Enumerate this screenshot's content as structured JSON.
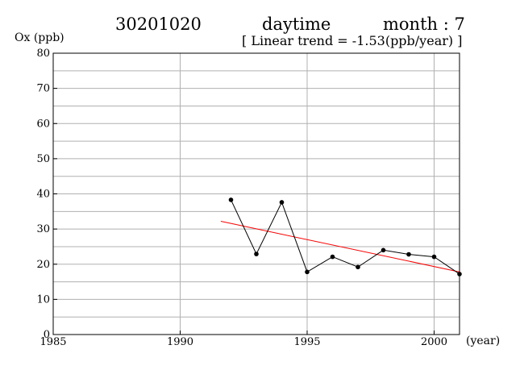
{
  "header": {
    "station": "30201020",
    "period": "daytime",
    "month": "month : 7",
    "trend": "[ Linear trend = -1.53(ppb/year) ]"
  },
  "chart_data": {
    "type": "line",
    "title": "",
    "ylabel": "Ox (ppb)",
    "xunit": "(year)",
    "xlim": [
      1985,
      2001
    ],
    "ylim": [
      0,
      80
    ],
    "xticks": [
      1985,
      1990,
      1995,
      2000
    ],
    "yticks": [
      0,
      10,
      20,
      30,
      40,
      50,
      60,
      70,
      80
    ],
    "grid": true,
    "series": [
      {
        "x": [
          1992,
          1993,
          1994,
          1995,
          1996,
          1997,
          1998,
          1999,
          2000,
          2001
        ],
        "y": [
          38.3,
          22.9,
          37.6,
          17.8,
          22.1,
          19.2,
          24.0,
          22.8,
          22.1,
          17.2
        ],
        "color": "#000000"
      }
    ],
    "trendline": {
      "x": [
        1991.6,
        2001
      ],
      "y": [
        32.2,
        17.8
      ],
      "color": "#ff0000"
    }
  }
}
